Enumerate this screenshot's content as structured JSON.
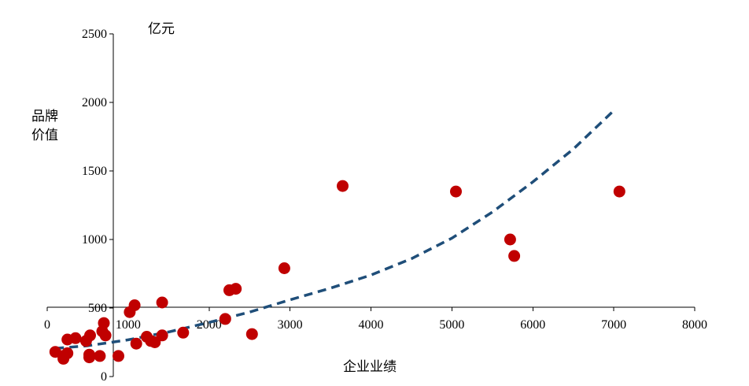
{
  "chart_data": {
    "type": "scatter",
    "title": "",
    "unit_label": "亿元",
    "ylabel_lines": [
      "品牌",
      "价值"
    ],
    "xlabel": "企业业绩",
    "xlim": [
      0,
      8000
    ],
    "ylim": [
      0,
      2500
    ],
    "x_ticks": [
      0,
      1000,
      2000,
      3000,
      4000,
      5000,
      6000,
      7000,
      8000
    ],
    "y_ticks": [
      0,
      500,
      1000,
      1500,
      2000,
      2500
    ],
    "grid": false,
    "legend": "none",
    "colors": {
      "points": "#C00000",
      "trend": "#1F4E79"
    },
    "series": [
      {
        "points": [
          [
            100,
            180
          ],
          [
            200,
            130
          ],
          [
            200,
            150
          ],
          [
            250,
            270
          ],
          [
            250,
            170
          ],
          [
            350,
            280
          ],
          [
            480,
            260
          ],
          [
            520,
            160
          ],
          [
            520,
            140
          ],
          [
            530,
            300
          ],
          [
            650,
            150
          ],
          [
            680,
            330
          ],
          [
            700,
            390
          ],
          [
            720,
            300
          ],
          [
            880,
            150
          ],
          [
            1020,
            470
          ],
          [
            1080,
            520
          ],
          [
            1100,
            240
          ],
          [
            1230,
            290
          ],
          [
            1280,
            260
          ],
          [
            1330,
            250
          ],
          [
            1420,
            540
          ],
          [
            1420,
            300
          ],
          [
            1680,
            320
          ],
          [
            2200,
            420
          ],
          [
            2250,
            630
          ],
          [
            2330,
            640
          ],
          [
            2530,
            310
          ],
          [
            2930,
            790
          ],
          [
            3650,
            1390
          ],
          [
            5050,
            1350
          ],
          [
            5720,
            1000
          ],
          [
            5770,
            880
          ],
          [
            7070,
            1350
          ]
        ]
      }
    ],
    "trendline": {
      "style": "dashed",
      "x": [
        100,
        500,
        1000,
        1500,
        2000,
        2500,
        3000,
        3500,
        4000,
        4500,
        5000,
        5500,
        6000,
        6500,
        7000
      ],
      "y": [
        205,
        225,
        268,
        325,
        395,
        470,
        560,
        645,
        740,
        860,
        1010,
        1200,
        1420,
        1660,
        1940
      ]
    }
  }
}
